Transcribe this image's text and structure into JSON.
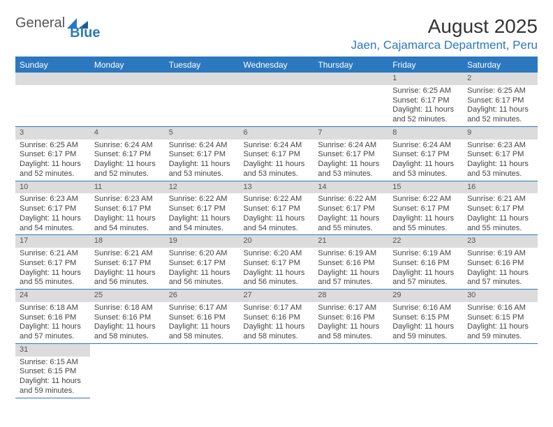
{
  "logo": {
    "text_general": "General",
    "text_blue": "Blue"
  },
  "header": {
    "month_title": "August 2025",
    "location": "Jaen, Cajamarca Department, Peru"
  },
  "colors": {
    "brand_blue": "#2b78bf",
    "header_grey": "#dcdcdc",
    "text": "#444444"
  },
  "calendar": {
    "day_headers": [
      "Sunday",
      "Monday",
      "Tuesday",
      "Wednesday",
      "Thursday",
      "Friday",
      "Saturday"
    ],
    "leading_blanks": 5,
    "days": [
      {
        "n": "1",
        "sunrise": "Sunrise: 6:25 AM",
        "sunset": "Sunset: 6:17 PM",
        "daylight": "Daylight: 11 hours and 52 minutes."
      },
      {
        "n": "2",
        "sunrise": "Sunrise: 6:25 AM",
        "sunset": "Sunset: 6:17 PM",
        "daylight": "Daylight: 11 hours and 52 minutes."
      },
      {
        "n": "3",
        "sunrise": "Sunrise: 6:25 AM",
        "sunset": "Sunset: 6:17 PM",
        "daylight": "Daylight: 11 hours and 52 minutes."
      },
      {
        "n": "4",
        "sunrise": "Sunrise: 6:24 AM",
        "sunset": "Sunset: 6:17 PM",
        "daylight": "Daylight: 11 hours and 52 minutes."
      },
      {
        "n": "5",
        "sunrise": "Sunrise: 6:24 AM",
        "sunset": "Sunset: 6:17 PM",
        "daylight": "Daylight: 11 hours and 53 minutes."
      },
      {
        "n": "6",
        "sunrise": "Sunrise: 6:24 AM",
        "sunset": "Sunset: 6:17 PM",
        "daylight": "Daylight: 11 hours and 53 minutes."
      },
      {
        "n": "7",
        "sunrise": "Sunrise: 6:24 AM",
        "sunset": "Sunset: 6:17 PM",
        "daylight": "Daylight: 11 hours and 53 minutes."
      },
      {
        "n": "8",
        "sunrise": "Sunrise: 6:24 AM",
        "sunset": "Sunset: 6:17 PM",
        "daylight": "Daylight: 11 hours and 53 minutes."
      },
      {
        "n": "9",
        "sunrise": "Sunrise: 6:23 AM",
        "sunset": "Sunset: 6:17 PM",
        "daylight": "Daylight: 11 hours and 53 minutes."
      },
      {
        "n": "10",
        "sunrise": "Sunrise: 6:23 AM",
        "sunset": "Sunset: 6:17 PM",
        "daylight": "Daylight: 11 hours and 54 minutes."
      },
      {
        "n": "11",
        "sunrise": "Sunrise: 6:23 AM",
        "sunset": "Sunset: 6:17 PM",
        "daylight": "Daylight: 11 hours and 54 minutes."
      },
      {
        "n": "12",
        "sunrise": "Sunrise: 6:22 AM",
        "sunset": "Sunset: 6:17 PM",
        "daylight": "Daylight: 11 hours and 54 minutes."
      },
      {
        "n": "13",
        "sunrise": "Sunrise: 6:22 AM",
        "sunset": "Sunset: 6:17 PM",
        "daylight": "Daylight: 11 hours and 54 minutes."
      },
      {
        "n": "14",
        "sunrise": "Sunrise: 6:22 AM",
        "sunset": "Sunset: 6:17 PM",
        "daylight": "Daylight: 11 hours and 55 minutes."
      },
      {
        "n": "15",
        "sunrise": "Sunrise: 6:22 AM",
        "sunset": "Sunset: 6:17 PM",
        "daylight": "Daylight: 11 hours and 55 minutes."
      },
      {
        "n": "16",
        "sunrise": "Sunrise: 6:21 AM",
        "sunset": "Sunset: 6:17 PM",
        "daylight": "Daylight: 11 hours and 55 minutes."
      },
      {
        "n": "17",
        "sunrise": "Sunrise: 6:21 AM",
        "sunset": "Sunset: 6:17 PM",
        "daylight": "Daylight: 11 hours and 55 minutes."
      },
      {
        "n": "18",
        "sunrise": "Sunrise: 6:21 AM",
        "sunset": "Sunset: 6:17 PM",
        "daylight": "Daylight: 11 hours and 56 minutes."
      },
      {
        "n": "19",
        "sunrise": "Sunrise: 6:20 AM",
        "sunset": "Sunset: 6:17 PM",
        "daylight": "Daylight: 11 hours and 56 minutes."
      },
      {
        "n": "20",
        "sunrise": "Sunrise: 6:20 AM",
        "sunset": "Sunset: 6:17 PM",
        "daylight": "Daylight: 11 hours and 56 minutes."
      },
      {
        "n": "21",
        "sunrise": "Sunrise: 6:19 AM",
        "sunset": "Sunset: 6:16 PM",
        "daylight": "Daylight: 11 hours and 57 minutes."
      },
      {
        "n": "22",
        "sunrise": "Sunrise: 6:19 AM",
        "sunset": "Sunset: 6:16 PM",
        "daylight": "Daylight: 11 hours and 57 minutes."
      },
      {
        "n": "23",
        "sunrise": "Sunrise: 6:19 AM",
        "sunset": "Sunset: 6:16 PM",
        "daylight": "Daylight: 11 hours and 57 minutes."
      },
      {
        "n": "24",
        "sunrise": "Sunrise: 6:18 AM",
        "sunset": "Sunset: 6:16 PM",
        "daylight": "Daylight: 11 hours and 57 minutes."
      },
      {
        "n": "25",
        "sunrise": "Sunrise: 6:18 AM",
        "sunset": "Sunset: 6:16 PM",
        "daylight": "Daylight: 11 hours and 58 minutes."
      },
      {
        "n": "26",
        "sunrise": "Sunrise: 6:17 AM",
        "sunset": "Sunset: 6:16 PM",
        "daylight": "Daylight: 11 hours and 58 minutes."
      },
      {
        "n": "27",
        "sunrise": "Sunrise: 6:17 AM",
        "sunset": "Sunset: 6:16 PM",
        "daylight": "Daylight: 11 hours and 58 minutes."
      },
      {
        "n": "28",
        "sunrise": "Sunrise: 6:17 AM",
        "sunset": "Sunset: 6:16 PM",
        "daylight": "Daylight: 11 hours and 58 minutes."
      },
      {
        "n": "29",
        "sunrise": "Sunrise: 6:16 AM",
        "sunset": "Sunset: 6:15 PM",
        "daylight": "Daylight: 11 hours and 59 minutes."
      },
      {
        "n": "30",
        "sunrise": "Sunrise: 6:16 AM",
        "sunset": "Sunset: 6:15 PM",
        "daylight": "Daylight: 11 hours and 59 minutes."
      },
      {
        "n": "31",
        "sunrise": "Sunrise: 6:15 AM",
        "sunset": "Sunset: 6:15 PM",
        "daylight": "Daylight: 11 hours and 59 minutes."
      }
    ]
  }
}
